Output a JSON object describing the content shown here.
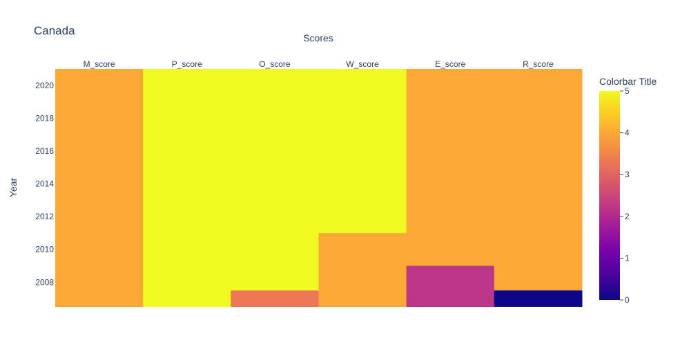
{
  "chart_data": {
    "type": "heatmap",
    "title": "Canada",
    "xlabel": "Scores",
    "ylabel": "Year",
    "x_axis_side": "top",
    "categories": [
      "M_score",
      "P_score",
      "O_score",
      "W_score",
      "E_score",
      "R_score"
    ],
    "y_ticks": [
      2008,
      2010,
      2012,
      2014,
      2016,
      2018,
      2020
    ],
    "ylim": [
      2006.5,
      2021
    ],
    "cells": [
      {
        "category": "M_score",
        "y0": 2006.5,
        "y1": 2021,
        "value": 4
      },
      {
        "category": "P_score",
        "y0": 2006.5,
        "y1": 2021,
        "value": 5
      },
      {
        "category": "O_score",
        "y0": 2007.5,
        "y1": 2021,
        "value": 5
      },
      {
        "category": "O_score",
        "y0": 2006.5,
        "y1": 2007.5,
        "value": 3.3
      },
      {
        "category": "W_score",
        "y0": 2011,
        "y1": 2021,
        "value": 5
      },
      {
        "category": "W_score",
        "y0": 2006.5,
        "y1": 2011,
        "value": 4
      },
      {
        "category": "E_score",
        "y0": 2009,
        "y1": 2021,
        "value": 4
      },
      {
        "category": "E_score",
        "y0": 2006.5,
        "y1": 2009,
        "value": 2.2
      },
      {
        "category": "R_score",
        "y0": 2007.5,
        "y1": 2021,
        "value": 4
      },
      {
        "category": "R_score",
        "y0": 2006.5,
        "y1": 2007.5,
        "value": 0
      }
    ],
    "colorbar": {
      "title": "Colorbar Title",
      "range": [
        0,
        5
      ],
      "ticks": [
        0,
        1,
        2,
        3,
        4,
        5
      ],
      "colorscale": [
        "#0d0887",
        "#46039f",
        "#7201a8",
        "#9c179e",
        "#bd3786",
        "#d8576b",
        "#ed7953",
        "#fb9f3a",
        "#fdca26",
        "#f0f921"
      ]
    }
  }
}
